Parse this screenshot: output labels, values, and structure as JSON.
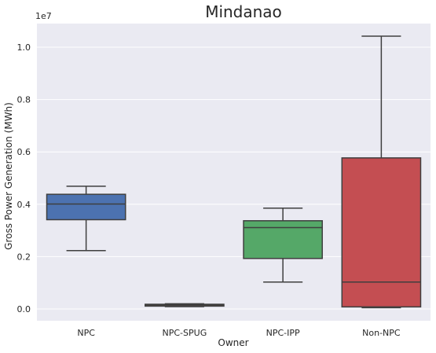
{
  "chart_data": {
    "type": "box",
    "title": "Mindanao",
    "xlabel": "Owner",
    "ylabel": "Gross Power Generation (MWh)",
    "y_offset_label": "1e7",
    "y_scale": 10000000,
    "ylim": [
      -0.045,
      1.09
    ],
    "yticks": [
      0.0,
      0.2,
      0.4,
      0.6,
      0.8,
      1.0
    ],
    "ytick_labels": [
      "0.0",
      "0.2",
      "0.4",
      "0.6",
      "0.8",
      "1.0"
    ],
    "grid": true,
    "categories": [
      "NPC",
      "NPC-SPUG",
      "NPC-IPP",
      "Non-NPC"
    ],
    "boxes": [
      {
        "category": "NPC",
        "whisker_low": 0.223,
        "q1": 0.341,
        "median": 0.401,
        "q3": 0.438,
        "whisker_high": 0.469,
        "color": "#4c72b0"
      },
      {
        "category": "NPC-SPUG",
        "whisker_low": 0.009,
        "q1": 0.011,
        "median": 0.015,
        "q3": 0.018,
        "whisker_high": 0.02,
        "color": "#dd8452"
      },
      {
        "category": "NPC-IPP",
        "whisker_low": 0.103,
        "q1": 0.193,
        "median": 0.311,
        "q3": 0.337,
        "whisker_high": 0.385,
        "color": "#55a868"
      },
      {
        "category": "Non-NPC",
        "whisker_low": 0.005,
        "q1": 0.008,
        "median": 0.103,
        "q3": 0.577,
        "whisker_high": 1.042,
        "color": "#c44e52"
      }
    ]
  }
}
